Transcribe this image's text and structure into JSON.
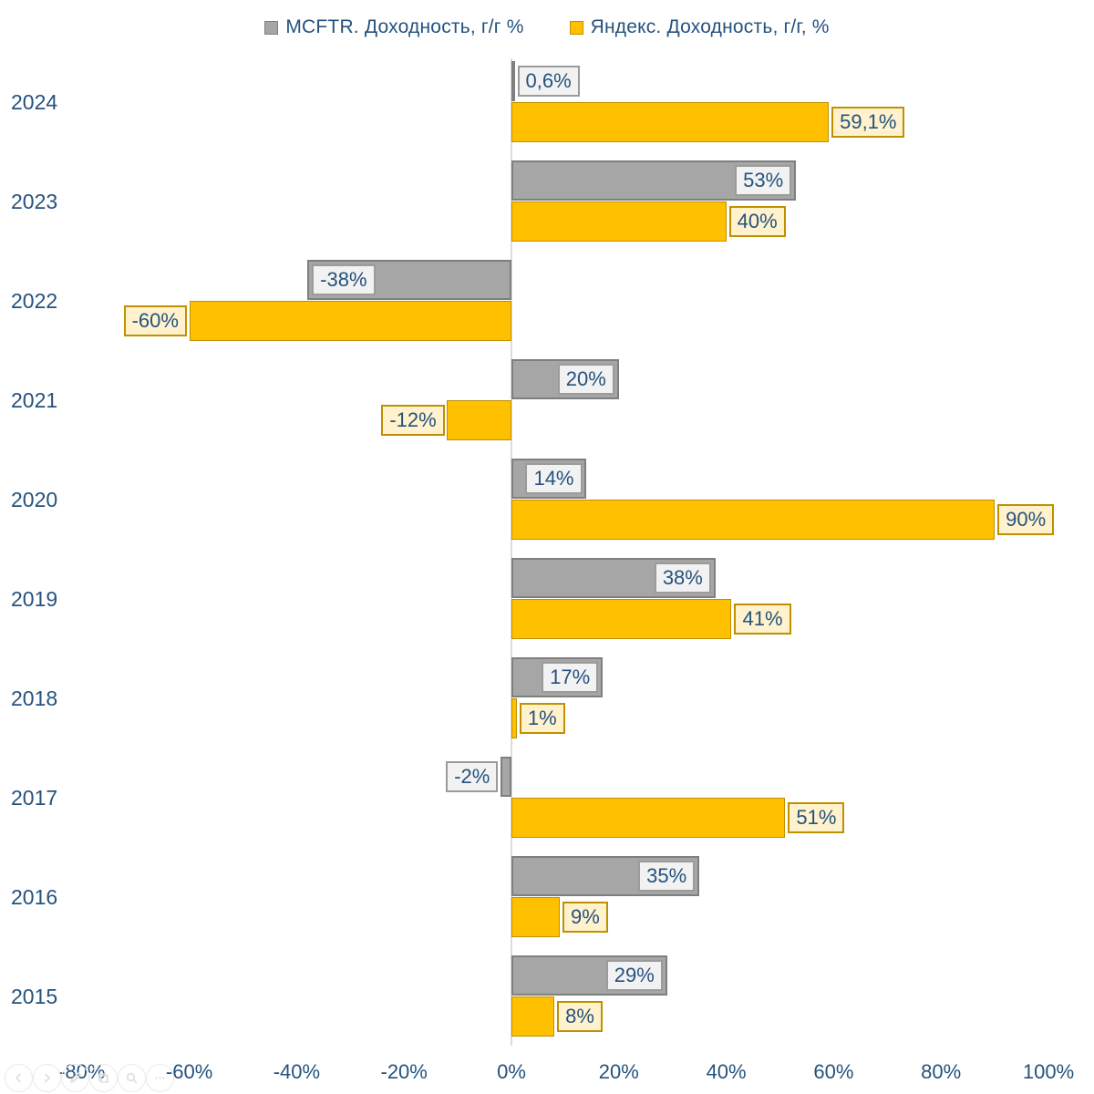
{
  "chart_data": {
    "type": "bar",
    "orientation": "horizontal",
    "categories": [
      "2024",
      "2023",
      "2022",
      "2021",
      "2020",
      "2019",
      "2018",
      "2017",
      "2016",
      "2015"
    ],
    "series": [
      {
        "name": "MCFTR. Доходность, г/г %",
        "color": "#A6A6A6",
        "border_color": "#7F7F7F",
        "label_bg": "#F2F2F2",
        "label_border": "#9B9B9B",
        "label_placement": "inside-end",
        "values": [
          0.6,
          53,
          -38,
          20,
          14,
          38,
          17,
          -2,
          35,
          29
        ],
        "labels": [
          "0,6%",
          "53%",
          "-38%",
          "20%",
          "14%",
          "38%",
          "17%",
          "-2%",
          "35%",
          "29%"
        ]
      },
      {
        "name": "Яндекс. Доходность, г/г, %",
        "color": "#FFC000",
        "border_color": "#BF9000",
        "label_bg": "#FFF2CC",
        "label_border": "#BF9000",
        "label_placement": "outside-end",
        "values": [
          59.1,
          40,
          -60,
          -12,
          90,
          41,
          1,
          51,
          9,
          8
        ],
        "labels": [
          "59,1%",
          "40%",
          "-60%",
          "-12%",
          "90%",
          "41%",
          "1%",
          "51%",
          "9%",
          "8%"
        ]
      }
    ],
    "x_axis": {
      "min": -80,
      "max": 100,
      "tick_step": 20,
      "ticks": [
        "-80%",
        "-60%",
        "-40%",
        "-20%",
        "0%",
        "20%",
        "40%",
        "60%",
        "80%",
        "100%"
      ],
      "tick_values": [
        -80,
        -60,
        -40,
        -20,
        0,
        20,
        40,
        60,
        80,
        100
      ]
    },
    "legend_position": "top",
    "grid": false,
    "title": ""
  },
  "toolbar": {
    "icons": [
      "prev",
      "next",
      "edit",
      "copy",
      "zoom",
      "more"
    ]
  },
  "colors": {
    "text": "#25527E",
    "zero_line": "#DCDCDC",
    "background": "#FFFFFF",
    "toolbar_icon": "#DEDEDE"
  }
}
